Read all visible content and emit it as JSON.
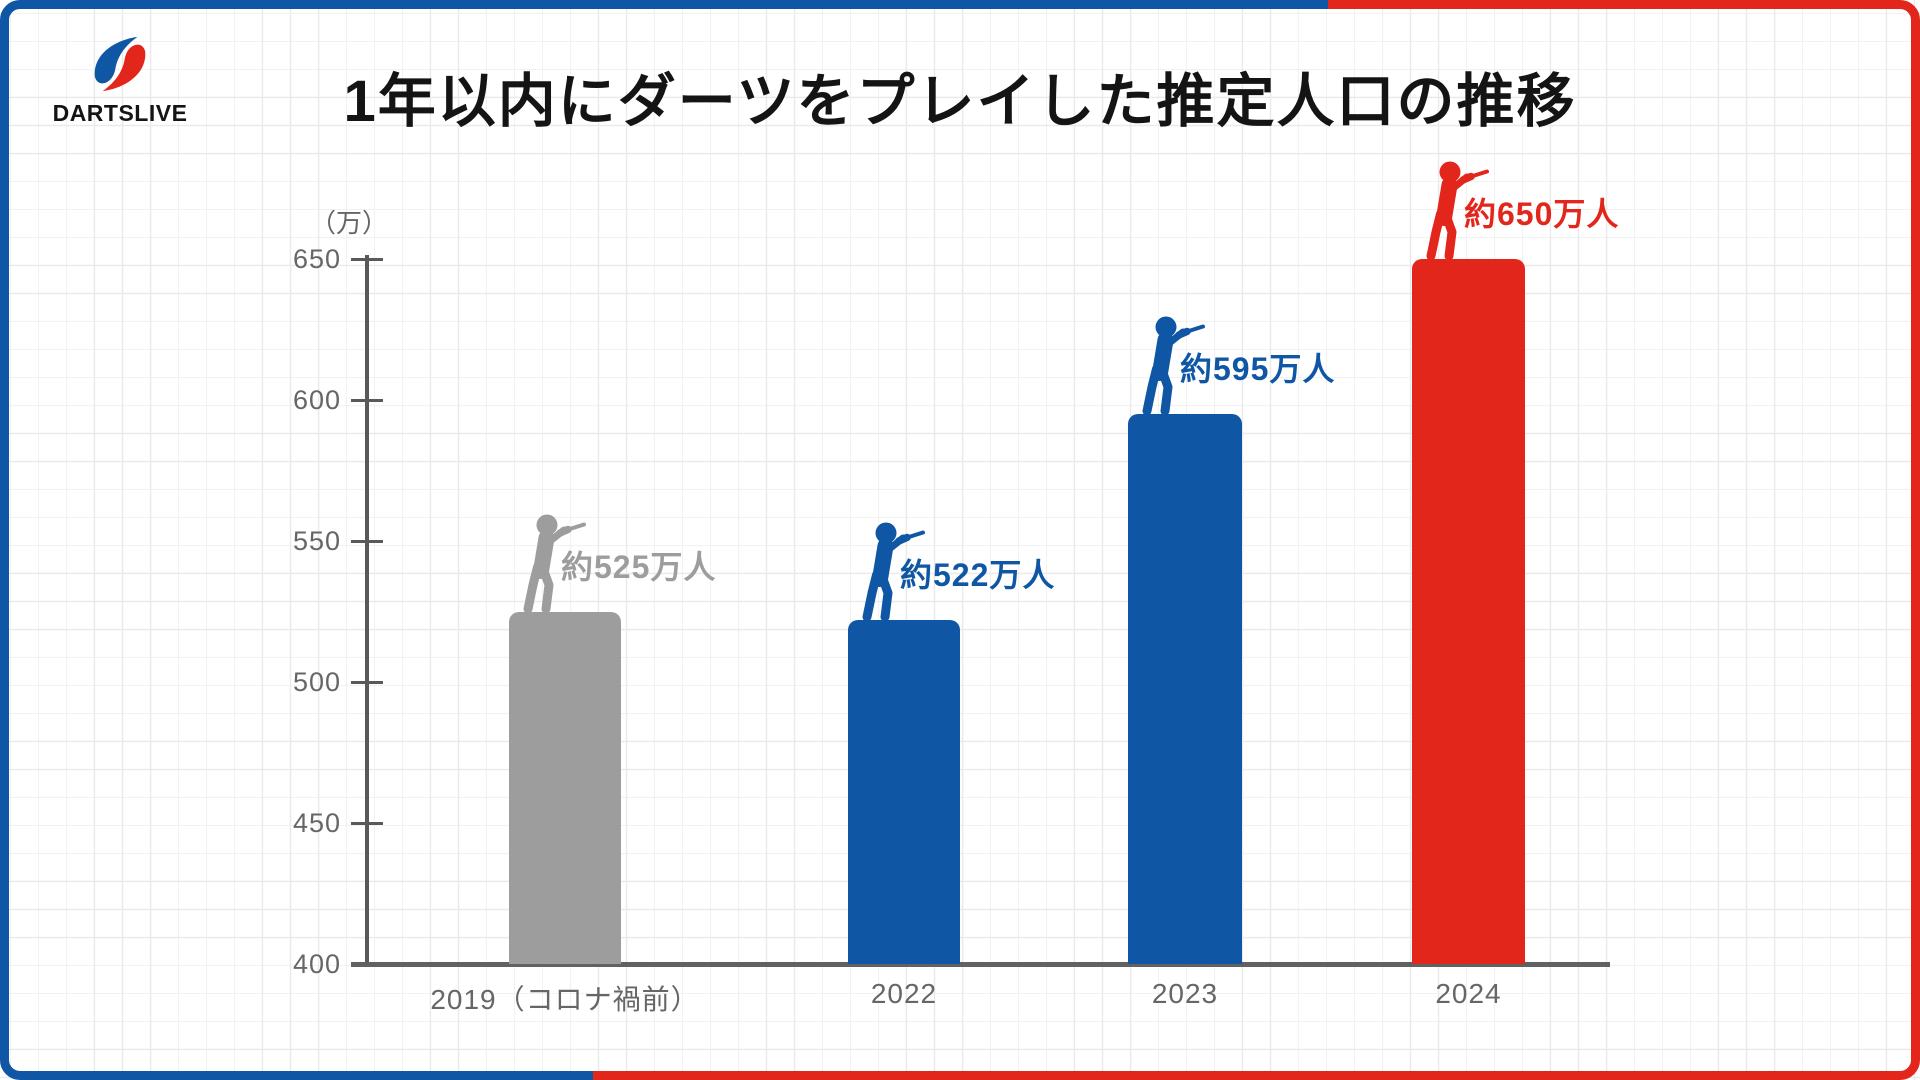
{
  "logo": {
    "text": "DARTSLIVE",
    "icon": "dartslive-swoosh-icon"
  },
  "title": {
    "text": "1年以内にダーツをプレイした推定人口の推移"
  },
  "chart_data": {
    "type": "bar",
    "title": "1年以内にダーツをプレイした推定人口の推移",
    "ylabel": "（万）",
    "xlabel": "",
    "unit": "万人",
    "categories": [
      "2019（コロナ禍前）",
      "2022",
      "2023",
      "2024"
    ],
    "values": [
      525,
      522,
      595,
      650
    ],
    "bars": [
      {
        "category": "2019（コロナ禍前）",
        "value": 525,
        "label": "約525万人",
        "color_key": "gray"
      },
      {
        "category": "2022",
        "value": 522,
        "label": "約522万人",
        "color_key": "blue"
      },
      {
        "category": "2023",
        "value": 595,
        "label": "約595万人",
        "color_key": "blue"
      },
      {
        "category": "2024",
        "value": 650,
        "label": "約650万人",
        "color_key": "red"
      }
    ],
    "yticks": [
      650,
      600,
      550,
      500,
      450,
      400
    ],
    "ylim": [
      400,
      650
    ],
    "grid": "light-gray-square-grid-background",
    "legend": "none"
  },
  "colors": {
    "gray": "#9d9d9d",
    "blue": "#0f56a4",
    "red": "#e3261c",
    "axis": "#595959",
    "tick_text": "#666666",
    "grid": "#eaeaea",
    "title_text": "#141414",
    "border_blue": "#0f56a4",
    "border_red": "#e3261c"
  }
}
